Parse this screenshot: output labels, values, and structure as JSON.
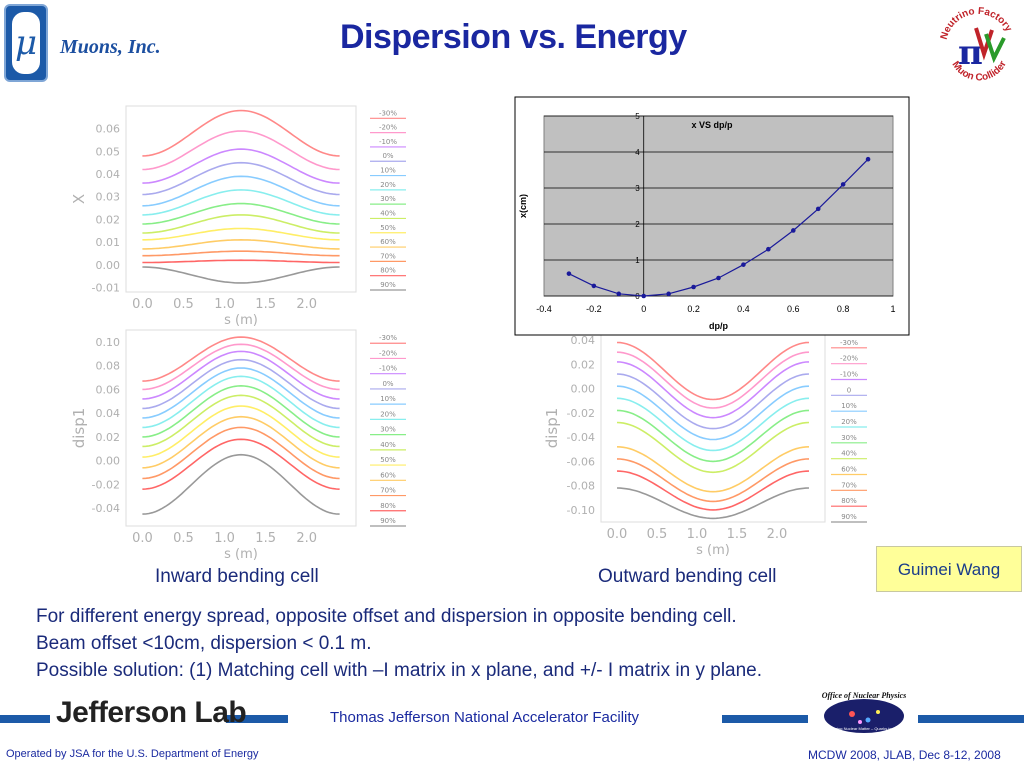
{
  "header": {
    "logo_symbol": "μ",
    "company": "Muons, Inc.",
    "title": "Dispersion vs. Energy",
    "nf_logo_text_top": "Neutrino Factory",
    "nf_logo_text_bottom": "Muon Collider",
    "nf_logo_glyph": "π"
  },
  "author_badge": "Guimei Wang",
  "captions": {
    "inward": "Inward bending cell",
    "outward": "Outward bending cell"
  },
  "body_text": {
    "line1": "For different energy spread, opposite offset and dispersion  in opposite bending cell.",
    "line2": "Beam offset <10cm, dispersion < 0.1 m.",
    "line3": "Possible solution: (1) Matching cell with –I matrix in x plane, and +/- I matrix in y plane."
  },
  "footer": {
    "jlab": "Jefferson Lab",
    "facility": "Thomas Jefferson National Accelerator Facility",
    "operated_by": "Operated by JSA for the U.S. Department of Energy",
    "meeting": "MCDW 2008, JLAB, Dec 8-12, 2008",
    "onp_logo_text": "Office of Nuclear Physics",
    "onp_logo_subtext": "Exploring Nuclear Matter – Quarks to Stars"
  },
  "colors": {
    "title": "#1a27a0",
    "accent_bar": "#1c5aa8",
    "badge_bg": "#ffff99",
    "series": [
      "#ff8888",
      "#ff99cc",
      "#cc88ff",
      "#aaaaee",
      "#88ccff",
      "#88eeee",
      "#88ee88",
      "#ccee66",
      "#ffee66",
      "#ffcc66",
      "#ff9966",
      "#ff6666",
      "#999999"
    ]
  },
  "chart_data": [
    {
      "type": "line",
      "id": "inward-x",
      "xlabel": "s  (m)",
      "ylabel": "X",
      "xlim": [
        -0.2,
        2.6
      ],
      "ylim": [
        -0.012,
        0.07
      ],
      "xticks": [
        "0.0",
        "0.5",
        "1.0",
        "1.5",
        "2.0"
      ],
      "yticks": [
        "-0.01",
        "0.00",
        "0.01",
        "0.02",
        "0.03",
        "0.04",
        "0.05",
        "0.06"
      ],
      "legend": [
        "-30%",
        "-20%",
        "-10%",
        "0%",
        "10%",
        "20%",
        "30%",
        "40%",
        "50%",
        "60%",
        "70%",
        "80%",
        "90%"
      ],
      "series_shape": "bump",
      "series_edge": [
        0.048,
        0.042,
        0.036,
        0.031,
        0.026,
        0.022,
        0.018,
        0.014,
        0.011,
        0.007,
        0.004,
        0.001,
        -0.001
      ],
      "series_center": [
        0.068,
        0.059,
        0.051,
        0.045,
        0.039,
        0.033,
        0.027,
        0.022,
        0.016,
        0.011,
        0.006,
        0.002,
        -0.008
      ]
    },
    {
      "type": "line",
      "id": "inward-disp1",
      "xlabel": "s  (m)",
      "ylabel": "disp1",
      "xlim": [
        -0.2,
        2.6
      ],
      "ylim": [
        -0.055,
        0.11
      ],
      "xticks": [
        "0.0",
        "0.5",
        "1.0",
        "1.5",
        "2.0"
      ],
      "yticks": [
        "-0.04",
        "-0.02",
        "0.00",
        "0.02",
        "0.04",
        "0.06",
        "0.08",
        "0.10"
      ],
      "legend": [
        "-30%",
        "-20%",
        "-10%",
        "0%",
        "10%",
        "20%",
        "30%",
        "40%",
        "50%",
        "60%",
        "70%",
        "80%",
        "90%"
      ],
      "series_shape": "bump",
      "series_edge": [
        0.067,
        0.06,
        0.052,
        0.044,
        0.036,
        0.028,
        0.02,
        0.012,
        0.003,
        -0.006,
        -0.015,
        -0.024,
        -0.045
      ],
      "series_center": [
        0.104,
        0.098,
        0.092,
        0.085,
        0.078,
        0.071,
        0.063,
        0.055,
        0.046,
        0.037,
        0.028,
        0.018,
        0.005
      ]
    },
    {
      "type": "line",
      "id": "outward-disp",
      "xlabel": "s  (m)",
      "ylabel": "disp1",
      "xlim": [
        -0.2,
        2.6
      ],
      "ylim": [
        -0.11,
        0.045
      ],
      "xticks": [
        "0.0",
        "0.5",
        "1.0",
        "1.5",
        "2.0"
      ],
      "yticks": [
        "-0.10",
        "-0.08",
        "-0.06",
        "-0.04",
        "-0.02",
        "0.00",
        "0.02",
        "0.04"
      ],
      "legend": [
        "-30%",
        "-20%",
        "-10%",
        "0",
        "10%",
        "20%",
        "30%",
        "40%",
        "60%",
        "70%",
        "80%",
        "90%"
      ],
      "series_shape": "dip",
      "series_edge": [
        0.038,
        0.03,
        0.022,
        0.012,
        0.002,
        -0.008,
        -0.018,
        -0.028,
        -0.048,
        -0.058,
        -0.068,
        -0.082
      ],
      "series_center": [
        -0.009,
        -0.016,
        -0.024,
        -0.033,
        -0.042,
        -0.051,
        -0.06,
        -0.069,
        -0.085,
        -0.093,
        -0.1,
        -0.107
      ]
    },
    {
      "type": "scatter",
      "id": "x-vs-dpp",
      "title": "x VS dp/p",
      "xlabel": "dp/p",
      "ylabel": "x(cm)",
      "xlim": [
        -0.4,
        1
      ],
      "ylim": [
        0,
        5
      ],
      "xticks": [
        "-0.4",
        "-0.2",
        "0",
        "0.2",
        "0.4",
        "0.6",
        "0.8",
        "1"
      ],
      "yticks": [
        "0",
        "1",
        "2",
        "3",
        "4",
        "5"
      ],
      "grid": true,
      "x": [
        -0.3,
        -0.2,
        -0.1,
        0,
        0.1,
        0.2,
        0.3,
        0.4,
        0.5,
        0.6,
        0.7,
        0.8,
        0.9
      ],
      "y": [
        0.62,
        0.28,
        0.06,
        0.0,
        0.06,
        0.25,
        0.5,
        0.87,
        1.3,
        1.82,
        2.42,
        3.1,
        3.8
      ]
    }
  ]
}
